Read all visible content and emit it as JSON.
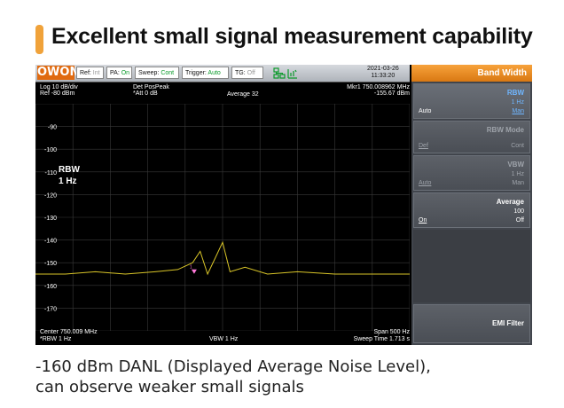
{
  "headline": "Excellent small signal measurement capability",
  "colors": {
    "accent": "#f0a23a",
    "trace": "#d9c528",
    "grid": "#3a3a3a",
    "panel_title": "#e9891f",
    "active_blue": "#6fb6ff"
  },
  "toolbar": {
    "logo": "OWON",
    "ref_label": "Ref:",
    "ref_value": "Int",
    "pa_label": "PA:",
    "pa_value": "On",
    "sweep_label": "Sweep:",
    "sweep_value": "Cont",
    "trigger_label": "Trigger:",
    "trigger_value": "Auto",
    "tg_label": "TG:",
    "tg_value": "Off",
    "network_icon": "network-icon",
    "date": "2021-03-26",
    "time": "11:33:20"
  },
  "info": {
    "log": "Log 10 dB/div",
    "ref": "Ref -80 dBm",
    "det": "Det PosPeak",
    "att": "*Att 0 dB",
    "average": "Average 32",
    "marker": "Mkr1  750.008962 MHz",
    "marker_level": "-155.67 dBm",
    "rbw_title": "RBW",
    "rbw_value": "1 Hz"
  },
  "footer": {
    "center": "Center 750.009 MHz",
    "rbw": "*RBW 1 Hz",
    "vbw": "VBW 1 Hz",
    "span": "Span 500 Hz",
    "sweep_time": "Sweep Time 1.713 s"
  },
  "panel": {
    "title": "Band Width",
    "items": [
      {
        "name": "RBW",
        "value": "1 Hz",
        "left": "Auto",
        "right": "Man"
      },
      {
        "name": "RBW Mode",
        "value": "",
        "left": "Def",
        "right": "Cont"
      },
      {
        "name": "VBW",
        "value": "1 Hz",
        "left": "Auto",
        "right": "Man"
      },
      {
        "name": "Average",
        "value": "100",
        "left": "On",
        "right": "Off"
      },
      {
        "name": "EMI Filter",
        "value": "",
        "left": "",
        "right": ""
      }
    ]
  },
  "chart_data": {
    "type": "line",
    "title": "",
    "xlabel": "",
    "ylabel": "",
    "xlim": [
      750.00875,
      750.00925
    ],
    "ylim": [
      -180,
      -80
    ],
    "y_tick_labels": [
      "-90",
      "-100",
      "-110",
      "-120",
      "-130",
      "-140",
      "-150",
      "-160",
      "-170"
    ],
    "grid": true,
    "series": [
      {
        "x": [
          750.00875,
          750.00879,
          750.00883,
          750.00887,
          750.00891,
          750.00894,
          750.00896,
          750.00897,
          750.00898,
          750.00899,
          750.009,
          750.00901,
          750.00903,
          750.00906,
          750.0091,
          750.00915,
          750.0092,
          750.00925
        ],
        "y": [
          -155,
          -155,
          -154,
          -155,
          -154,
          -153,
          -150,
          -145,
          -155,
          -148,
          -141,
          -154,
          -152,
          -155,
          -154,
          -155,
          -155,
          -155
        ]
      }
    ],
    "markers": [
      {
        "label": "1",
        "x": 750.008962,
        "y": -155.67
      }
    ]
  },
  "caption_line1": "-160 dBm DANL (Displayed Average Noise Level),",
  "caption_line2": "can observe weaker small signals"
}
